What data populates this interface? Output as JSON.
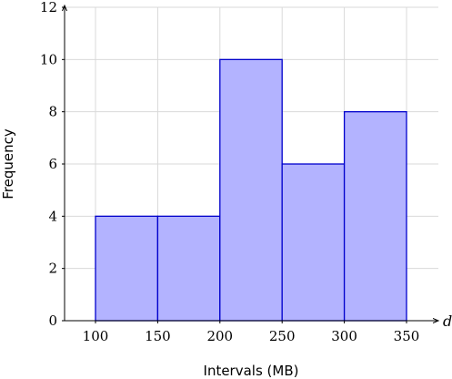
{
  "chart_data": {
    "type": "bar",
    "title": "",
    "xlabel": "Intervals (MB)",
    "ylabel": "Frequency",
    "x_axis_variable": "d",
    "bins": [
      {
        "from": 100,
        "to": 150,
        "value": 4
      },
      {
        "from": 150,
        "to": 200,
        "value": 4
      },
      {
        "from": 200,
        "to": 250,
        "value": 10
      },
      {
        "from": 250,
        "to": 300,
        "value": 6
      },
      {
        "from": 300,
        "to": 350,
        "value": 8
      }
    ],
    "x_ticks": [
      "100",
      "150",
      "200",
      "250",
      "300",
      "350"
    ],
    "y_ticks": [
      "0",
      "2",
      "4",
      "6",
      "8",
      "10",
      "12"
    ],
    "xlim": [
      70,
      370
    ],
    "ylim": [
      0,
      12
    ],
    "grid": true,
    "colors": {
      "bar_fill": "#b3b3ff",
      "bar_stroke": "#0000cc"
    }
  }
}
